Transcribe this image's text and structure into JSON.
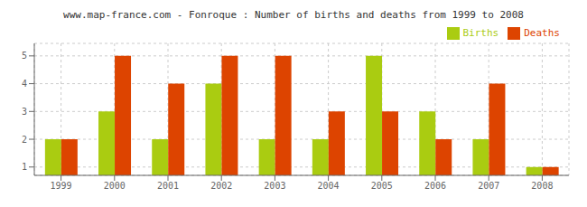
{
  "chart_data": {
    "type": "bar",
    "title": "www.map-france.com - Fonroque : Number of births and deaths from 1999 to 2008",
    "categories": [
      "1999",
      "2000",
      "2001",
      "2002",
      "2003",
      "2004",
      "2005",
      "2006",
      "2007",
      "2008"
    ],
    "series": [
      {
        "name": "Births",
        "color": "#aacc11",
        "values": [
          2,
          3,
          2,
          4,
          2,
          2,
          5,
          3,
          2,
          1
        ]
      },
      {
        "name": "Deaths",
        "color": "#dd4400",
        "values": [
          2,
          5,
          4,
          5,
          5,
          3,
          3,
          2,
          4,
          1
        ]
      }
    ],
    "ylim": [
      0.7,
      5.45
    ],
    "yticks": [
      1,
      2,
      3,
      4,
      5
    ],
    "grid": true,
    "legend": "upper right"
  }
}
